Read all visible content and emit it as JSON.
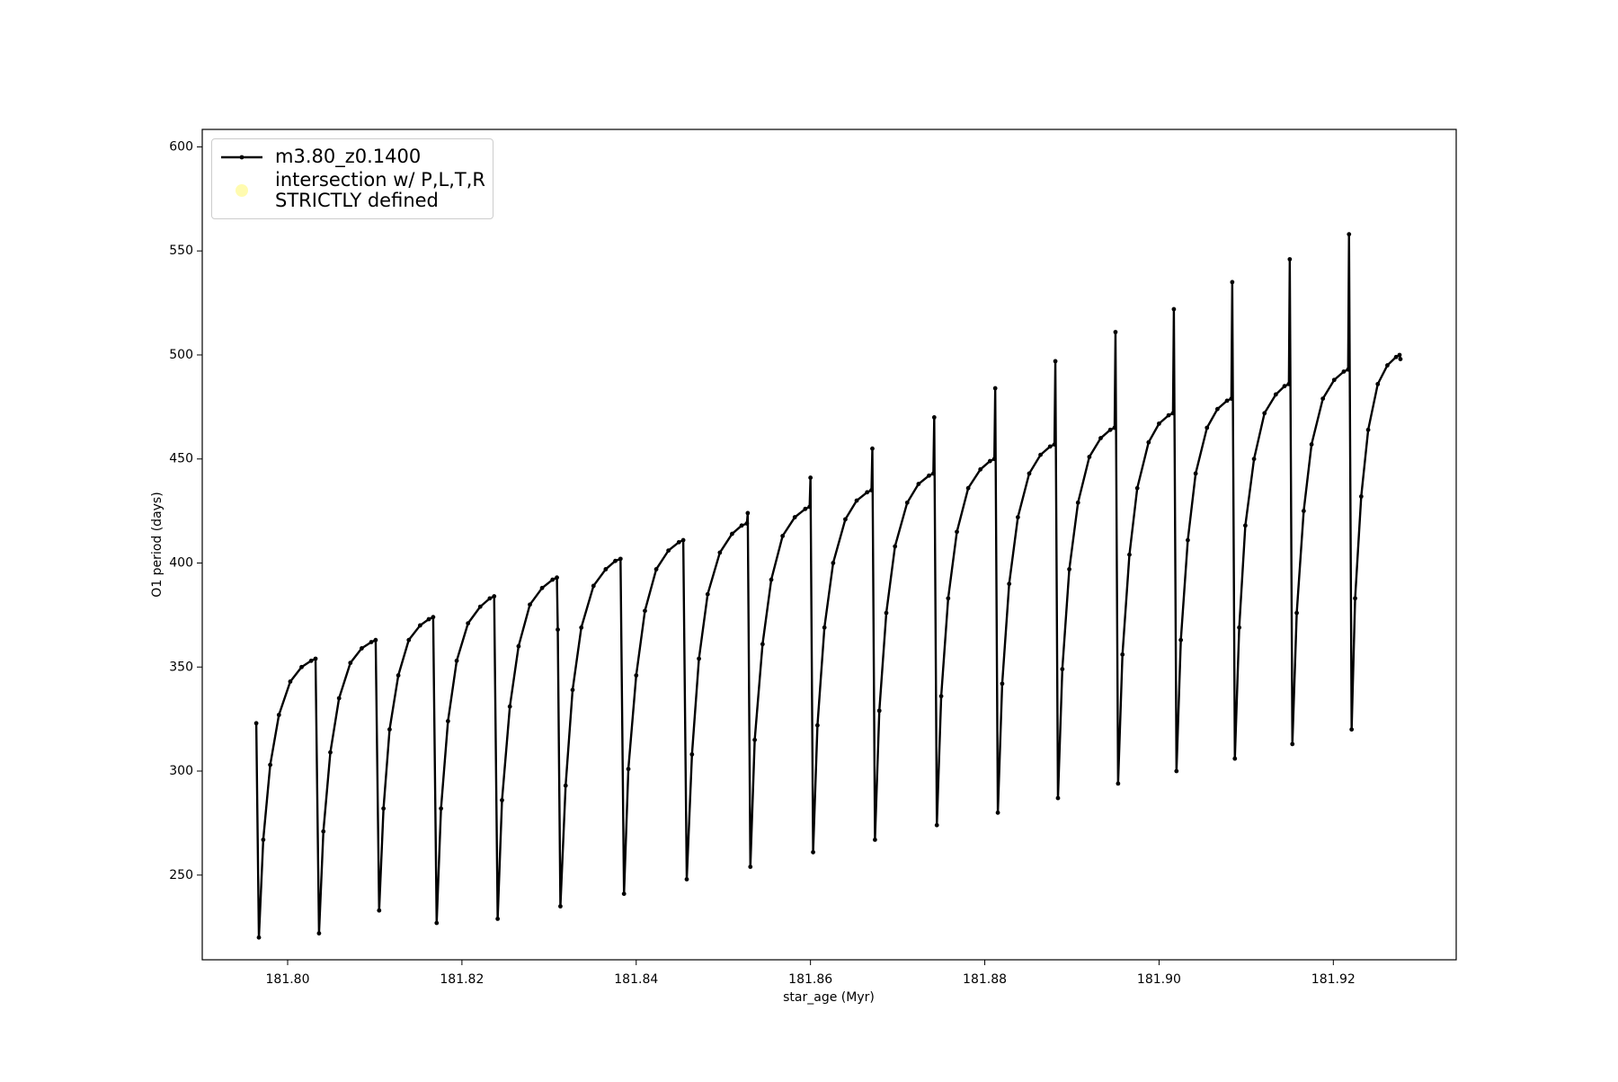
{
  "chart_data": {
    "type": "line",
    "xlabel": "star_age (Myr)",
    "ylabel": "O1 period (days)",
    "xlim": [
      181.7902,
      181.9341
    ],
    "ylim": [
      209.3,
      608.4
    ],
    "xticks": [
      {
        "value": 181.8,
        "label": "181.80"
      },
      {
        "value": 181.82,
        "label": "181.82"
      },
      {
        "value": 181.84,
        "label": "181.84"
      },
      {
        "value": 181.86,
        "label": "181.86"
      },
      {
        "value": 181.88,
        "label": "181.88"
      },
      {
        "value": 181.9,
        "label": "181.90"
      },
      {
        "value": 181.92,
        "label": "181.92"
      }
    ],
    "yticks": [
      250,
      300,
      350,
      400,
      450,
      500,
      550,
      600
    ],
    "grid": false,
    "legend": "upper left",
    "series": [
      {
        "name": "m3.80_z0.1400",
        "color": "#000000",
        "kind": "line",
        "x": [
          181.7964,
          181.7967,
          181.7972,
          181.798,
          181.799,
          181.8003,
          181.8016,
          181.8027,
          181.8032,
          181.8036,
          181.8041,
          181.8049,
          181.8059,
          181.8072,
          181.8085,
          181.8096,
          181.8101,
          181.8105,
          181.811,
          181.8117,
          181.8127,
          181.8139,
          181.8152,
          181.8162,
          181.8167,
          181.8171,
          181.8176,
          181.8184,
          181.8194,
          181.8207,
          181.8221,
          181.8232,
          181.8237,
          181.8241,
          181.8246,
          181.8255,
          181.8265,
          181.8278,
          181.8292,
          181.8304,
          181.8309,
          181.831,
          181.8313,
          181.8319,
          181.8327,
          181.8337,
          181.8351,
          181.8365,
          181.8376,
          181.8382,
          181.8386,
          181.8391,
          181.84,
          181.841,
          181.8423,
          181.8437,
          181.8449,
          181.8454,
          181.8458,
          181.8464,
          181.8472,
          181.8482,
          181.8496,
          181.851,
          181.8521,
          181.8527,
          181.8528,
          181.8531,
          181.8536,
          181.8545,
          181.8555,
          181.8568,
          181.8582,
          181.8594,
          181.8599,
          181.86,
          181.8603,
          181.8608,
          181.8616,
          181.8626,
          181.864,
          181.8653,
          181.8665,
          181.867,
          181.8671,
          181.8674,
          181.8679,
          181.8687,
          181.8697,
          181.8711,
          181.8724,
          181.8736,
          181.8741,
          181.8742,
          181.8745,
          181.875,
          181.8758,
          181.8768,
          181.8781,
          181.8795,
          181.8806,
          181.8811,
          181.8812,
          181.8815,
          181.882,
          181.8828,
          181.8838,
          181.8851,
          181.8864,
          181.8875,
          181.888,
          181.8881,
          181.8884,
          181.8889,
          181.8897,
          181.8907,
          181.892,
          181.8933,
          181.8944,
          181.8949,
          181.895,
          181.8953,
          181.8958,
          181.8966,
          181.8975,
          181.8988,
          181.9,
          181.9011,
          181.9016,
          181.9017,
          181.902,
          181.9025,
          181.9033,
          181.9042,
          181.9055,
          181.9067,
          181.9078,
          181.9083,
          181.9084,
          181.9087,
          181.9092,
          181.9099,
          181.9109,
          181.9121,
          181.9134,
          181.9144,
          181.9149,
          181.915,
          181.9153,
          181.9158,
          181.9166,
          181.9175,
          181.9188,
          181.9201,
          181.9212,
          181.9217,
          181.9218,
          181.9221,
          181.9225,
          181.9232,
          181.924,
          181.9251,
          181.9262,
          181.9272,
          181.9276,
          181.9277
        ],
        "values": [
          323,
          220,
          267,
          303,
          327,
          343,
          350,
          353,
          354,
          222,
          271,
          309,
          335,
          352,
          359,
          362,
          363,
          233,
          282,
          320,
          346,
          363,
          370,
          373,
          374,
          227,
          282,
          324,
          353,
          371,
          379,
          383,
          384,
          229,
          286,
          331,
          360,
          380,
          388,
          392,
          393,
          368,
          235,
          293,
          339,
          369,
          389,
          397,
          401,
          402,
          241,
          301,
          346,
          377,
          397,
          406,
          410,
          411,
          248,
          308,
          354,
          385,
          405,
          414,
          418,
          419,
          424,
          254,
          315,
          361,
          392,
          413,
          422,
          426,
          427,
          441,
          261,
          322,
          369,
          400,
          421,
          430,
          434,
          435,
          455,
          267,
          329,
          376,
          408,
          429,
          438,
          442,
          443,
          470,
          274,
          336,
          383,
          415,
          436,
          445,
          449,
          450,
          484,
          280,
          342,
          390,
          422,
          443,
          452,
          456,
          457,
          497,
          287,
          349,
          397,
          429,
          451,
          460,
          464,
          465,
          511,
          294,
          356,
          404,
          436,
          458,
          467,
          471,
          472,
          522,
          300,
          363,
          411,
          443,
          465,
          474,
          478,
          479,
          535,
          306,
          369,
          418,
          450,
          472,
          481,
          485,
          486,
          546,
          313,
          376,
          425,
          457,
          479,
          488,
          492,
          493,
          558,
          320,
          383,
          432,
          464,
          486,
          495,
          499,
          500,
          498
        ]
      },
      {
        "name": "intersection w/ P,L,T,R\nSTRICTLY defined",
        "color": "#fffbb0",
        "kind": "scatter",
        "x": [],
        "values": []
      }
    ]
  }
}
